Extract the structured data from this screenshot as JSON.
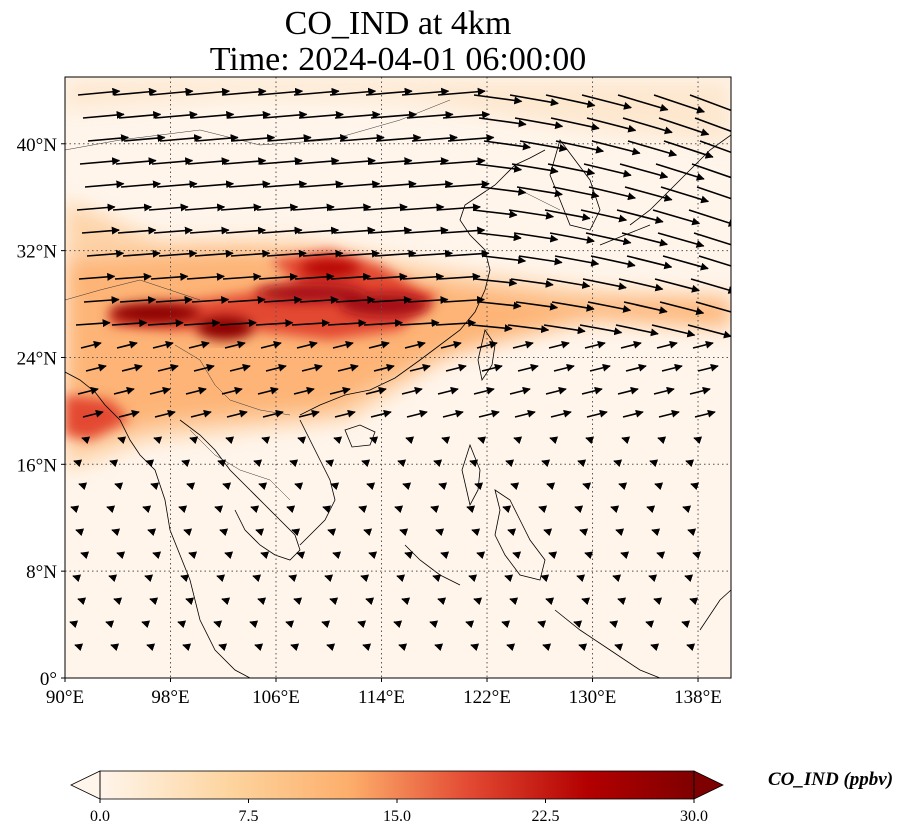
{
  "title": "CO_IND at 4km",
  "subtitle": "Time: 2024-04-01 06:00:00",
  "map": {
    "lon_range": [
      90,
      140.5
    ],
    "lat_range": [
      0,
      45
    ],
    "lon_ticks": [
      {
        "value": 90,
        "label": "90°E"
      },
      {
        "value": 98,
        "label": "98°E"
      },
      {
        "value": 106,
        "label": "106°E"
      },
      {
        "value": 114,
        "label": "114°E"
      },
      {
        "value": 122,
        "label": "122°E"
      },
      {
        "value": 130,
        "label": "130°E"
      },
      {
        "value": 138,
        "label": "138°E"
      }
    ],
    "lat_ticks": [
      {
        "value": 0,
        "label": "0°"
      },
      {
        "value": 8,
        "label": "8°N"
      },
      {
        "value": 16,
        "label": "16°N"
      },
      {
        "value": 24,
        "label": "24°N"
      },
      {
        "value": 32,
        "label": "32°N"
      },
      {
        "value": 40,
        "label": "40°N"
      }
    ],
    "gridlines": true
  },
  "colorbar": {
    "label": "CO_IND (ppbv)",
    "min": 0,
    "max": 30,
    "ticks": [
      {
        "value": 0,
        "label": "0.0"
      },
      {
        "value": 7.5,
        "label": "7.5"
      },
      {
        "value": 15,
        "label": "15.0"
      },
      {
        "value": 22.5,
        "label": "22.5"
      },
      {
        "value": 30,
        "label": "30.0"
      }
    ],
    "colors": [
      "#fff5eb",
      "#fdd49e",
      "#fdae6b",
      "#e34a33",
      "#b30000",
      "#7f0000"
    ],
    "extend": "both"
  }
}
